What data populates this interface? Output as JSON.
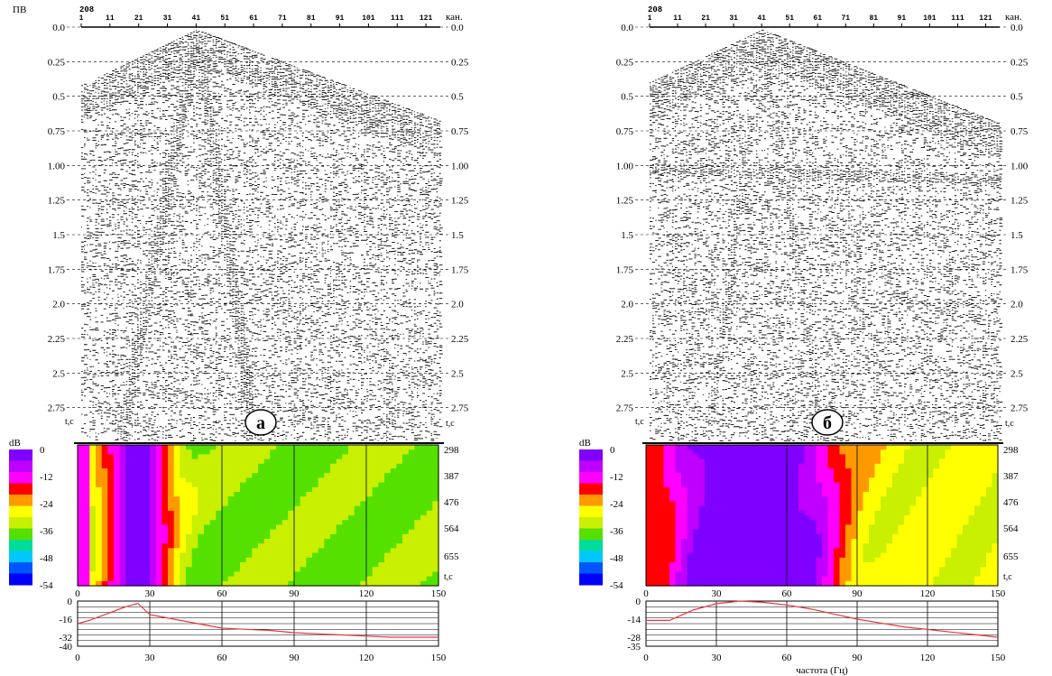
{
  "chart_data": [
    {
      "id": "a",
      "panel_label": "а",
      "seismogram": {
        "type": "seismic-gather",
        "y_axis_label": "ПВ",
        "x_axis_label": "кан.",
        "x_start_label": "208",
        "x_ticks": [
          "1",
          "11",
          "21",
          "31",
          "41",
          "51",
          "61",
          "71",
          "81",
          "91",
          "101",
          "111",
          "121"
        ],
        "y_ticks_left": [
          "0.0",
          "0.25",
          "0.5",
          "0.75",
          "1.00",
          "1.25",
          "1.5",
          "1.75",
          "2.0",
          "2.25",
          "2.5",
          "2.75"
        ],
        "y_ticks_right": [
          "0.0",
          "0.25",
          "0.5",
          "0.75",
          "1.00",
          "1.25",
          "1.5",
          "1.75",
          "2.0",
          "2.25",
          "2.5",
          "2.75"
        ],
        "time_unit_label": "t,c",
        "source_channel": 41,
        "y_range": [
          0,
          3.0
        ]
      },
      "spectrogram": {
        "type": "heatmap",
        "colorbar_unit": "dB",
        "colorbar_ticks": [
          "0",
          "-12",
          "-24",
          "-36",
          "-48",
          "-54"
        ],
        "x_ticks": [
          "0",
          "30",
          "60",
          "90",
          "120",
          "150"
        ],
        "right_ticks": [
          "298",
          "387",
          "476",
          "564",
          "655"
        ],
        "right_unit": "t,c",
        "description": "strong energy (-6..0 dB) centered near 25 Hz, decaying to -30..-42 dB above 60 Hz"
      },
      "spectrum": {
        "type": "line",
        "y_ticks": [
          "0",
          "-16",
          "-32",
          "-40"
        ],
        "x_ticks": [
          "0",
          "30",
          "60",
          "90",
          "120",
          "150"
        ],
        "xlabel": "",
        "x": [
          0,
          5,
          10,
          15,
          20,
          25,
          30,
          35,
          40,
          50,
          60,
          70,
          80,
          90,
          100,
          110,
          120,
          130,
          140,
          150
        ],
        "y": [
          -20,
          -17,
          -13,
          -9,
          -5,
          -2,
          -12,
          -14,
          -16,
          -20,
          -24,
          -25,
          -26,
          -28,
          -29,
          -30,
          -31,
          -32,
          -32,
          -32
        ],
        "ylim": [
          -40,
          0
        ],
        "line_color": "#e8373a"
      }
    },
    {
      "id": "b",
      "panel_label": "б",
      "seismogram": {
        "type": "seismic-gather",
        "y_axis_label": "",
        "x_axis_label": "кан.",
        "x_start_label": "208",
        "x_ticks": [
          "1",
          "11",
          "21",
          "31",
          "41",
          "51",
          "61",
          "71",
          "81",
          "91",
          "101",
          "111",
          "121"
        ],
        "y_ticks_left": [
          "0.0",
          "0.25",
          "0.5",
          "0.75",
          "1.00",
          "1.25",
          "1.5",
          "1.75",
          "2.0",
          "2.25",
          "2.5",
          "2.75"
        ],
        "y_ticks_right": [
          "0.0",
          "0.25",
          "0.5",
          "0.75",
          "1.00",
          "1.25",
          "1.5",
          "1.75",
          "2.0",
          "2.25",
          "2.5",
          "2.75"
        ],
        "time_unit_label": "t,c",
        "source_channel": 41,
        "y_range": [
          0,
          3.0
        ]
      },
      "spectrogram": {
        "type": "heatmap",
        "colorbar_unit": "dB",
        "colorbar_ticks": [
          "0",
          "-12",
          "-24",
          "-36",
          "-48",
          "-54"
        ],
        "x_ticks": [
          "0",
          "30",
          "60",
          "90",
          "120",
          "150"
        ],
        "right_ticks": [
          "298",
          "387",
          "476",
          "564",
          "655"
        ],
        "right_unit": "t,c",
        "description": "broadband energy (-6..0 dB) from 15 to 80 Hz, decaying to -18..-24 dB above 100 Hz"
      },
      "spectrum": {
        "type": "line",
        "y_ticks": [
          "0",
          "-14",
          "-28",
          "-35"
        ],
        "x_ticks": [
          "0",
          "30",
          "60",
          "90",
          "120",
          "150"
        ],
        "xlabel": "частота (Гц)",
        "x": [
          0,
          10,
          20,
          30,
          40,
          50,
          60,
          70,
          80,
          90,
          100,
          110,
          120,
          130,
          140,
          150
        ],
        "y": [
          -15,
          -15,
          -7,
          -2,
          0,
          -1,
          -3,
          -6,
          -10,
          -14,
          -17,
          -20,
          -22,
          -24,
          -26,
          -28
        ],
        "ylim": [
          -35,
          0
        ],
        "line_color": "#e8373a"
      }
    }
  ],
  "colors": {
    "spectrum_line": "#e8373a",
    "colorbar": [
      "#7f00ff",
      "#bf00ff",
      "#ff00ff",
      "#ff0000",
      "#ff9900",
      "#ffff00",
      "#c8f000",
      "#55e000",
      "#00dc9a",
      "#00c8ff",
      "#0055ff",
      "#0000ff"
    ]
  }
}
